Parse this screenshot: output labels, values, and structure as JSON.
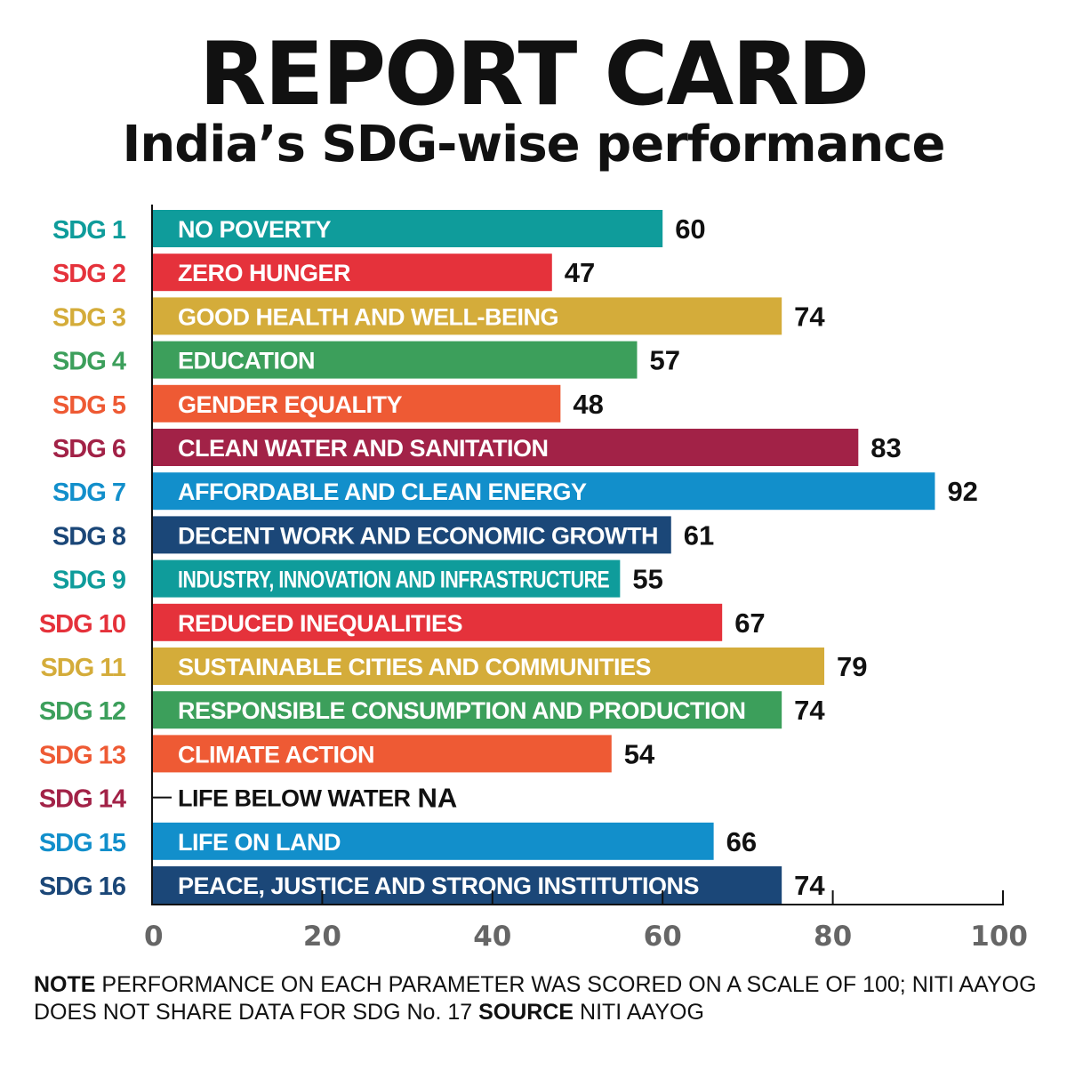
{
  "header": {
    "title": "REPORT CARD",
    "subtitle": "India’s SDG-wise performance"
  },
  "chart_data": {
    "type": "bar",
    "orientation": "horizontal",
    "title": "REPORT CARD",
    "subtitle": "India’s SDG-wise performance",
    "xlim": [
      0,
      100
    ],
    "xticks": [
      0,
      20,
      40,
      60,
      80,
      100
    ],
    "grid": false,
    "legend": "none",
    "bars": [
      {
        "code": "SDG 1",
        "label": "NO POVERTY",
        "value": 60,
        "value_label": "60",
        "color": "#0f9c9b"
      },
      {
        "code": "SDG 2",
        "label": "ZERO HUNGER",
        "value": 47,
        "value_label": "47",
        "color": "#e5323b"
      },
      {
        "code": "SDG 3",
        "label": "GOOD HEALTH AND WELL-BEING",
        "value": 74,
        "value_label": "74",
        "color": "#d4ac3a"
      },
      {
        "code": "SDG 4",
        "label": "EDUCATION",
        "value": 57,
        "value_label": "57",
        "color": "#3c9f5b"
      },
      {
        "code": "SDG 5",
        "label": "GENDER EQUALITY",
        "value": 48,
        "value_label": "48",
        "color": "#ee5a34"
      },
      {
        "code": "SDG 6",
        "label": "CLEAN WATER AND SANITATION",
        "value": 83,
        "value_label": "83",
        "color": "#a22247"
      },
      {
        "code": "SDG 7",
        "label": "AFFORDABLE AND CLEAN ENERGY",
        "value": 92,
        "value_label": "92",
        "color": "#128fcb"
      },
      {
        "code": "SDG 8",
        "label": "DECENT WORK AND ECONOMIC GROWTH",
        "value": 61,
        "value_label": "61",
        "color": "#1b4778"
      },
      {
        "code": "SDG 9",
        "label": "INDUSTRY, INNOVATION AND INFRASTRUCTURE",
        "value": 55,
        "value_label": "55",
        "color": "#0f9c9b"
      },
      {
        "code": "SDG 10",
        "label": "REDUCED INEQUALITIES",
        "value": 67,
        "value_label": "67",
        "color": "#e5323b"
      },
      {
        "code": "SDG 11",
        "label": "SUSTAINABLE CITIES AND COMMUNITIES",
        "value": 79,
        "value_label": "79",
        "color": "#d4ac3a"
      },
      {
        "code": "SDG 12",
        "label": "RESPONSIBLE CONSUMPTION AND PRODUCTION",
        "value": 74,
        "value_label": "74",
        "color": "#3c9f5b"
      },
      {
        "code": "SDG 13",
        "label": "CLIMATE ACTION",
        "value": 54,
        "value_label": "54",
        "color": "#ee5a34"
      },
      {
        "code": "SDG 14",
        "label": "LIFE BELOW WATER",
        "value": null,
        "value_label": "NA",
        "color": "#a22247"
      },
      {
        "code": "SDG 15",
        "label": "LIFE ON LAND",
        "value": 66,
        "value_label": "66",
        "color": "#128fcb"
      },
      {
        "code": "SDG 16",
        "label": "PEACE, JUSTICE AND STRONG INSTITUTIONS",
        "value": 74,
        "value_label": "74",
        "color": "#1b4778"
      }
    ]
  },
  "footnote": {
    "note_label": "NOTE",
    "note_text": " PERFORMANCE ON EACH PARAMETER WAS SCORED ON A SCALE OF 100; NITI AAYOG DOES NOT SHARE DATA FOR SDG No. 17 ",
    "source_label": "SOURCE",
    "source_text": " NITI AAYOG"
  }
}
